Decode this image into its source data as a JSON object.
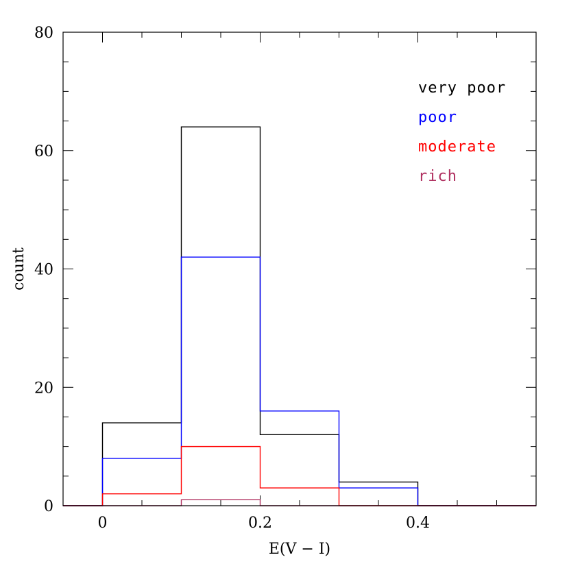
{
  "chart_data": {
    "type": "histogram",
    "xlabel": "E(V − I)",
    "ylabel": "count",
    "xlim": [
      -0.05,
      0.55
    ],
    "ylim": [
      0,
      80
    ],
    "x_major_ticks": [
      0,
      0.2,
      0.4
    ],
    "x_tick_labels": [
      "0",
      "0.2",
      "0.4"
    ],
    "x_minor_step": 0.05,
    "y_major_ticks": [
      0,
      20,
      40,
      60,
      80
    ],
    "y_tick_labels": [
      "0",
      "20",
      "40",
      "60",
      "80"
    ],
    "y_minor_step": 5,
    "bin_edges": [
      0,
      0.1,
      0.2,
      0.3,
      0.4,
      0.5
    ],
    "grid": false,
    "legend_position": "top-right",
    "series": [
      {
        "name": "very poor",
        "color": "#000000",
        "counts": [
          14,
          64,
          12,
          4,
          0
        ]
      },
      {
        "name": "poor",
        "color": "#0000ff",
        "counts": [
          8,
          42,
          16,
          3,
          0
        ]
      },
      {
        "name": "moderate",
        "color": "#ff0000",
        "counts": [
          2,
          10,
          3,
          0,
          0
        ]
      },
      {
        "name": "rich",
        "color": "#b03060",
        "counts": [
          0,
          1,
          0,
          0,
          0
        ]
      }
    ]
  }
}
